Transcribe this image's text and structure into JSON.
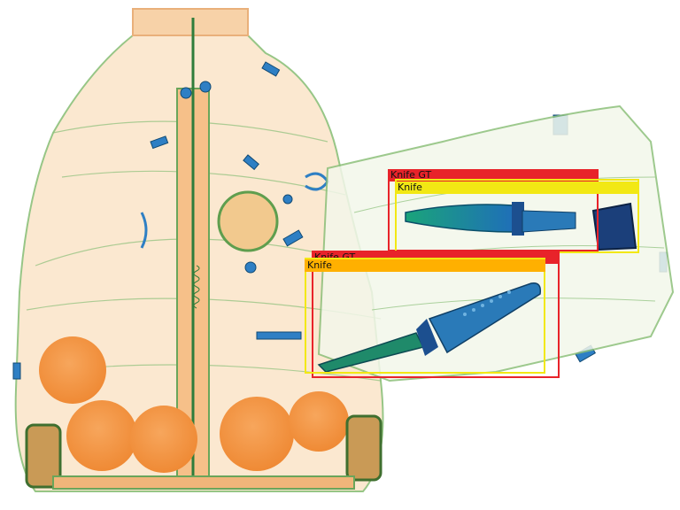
{
  "colors": {
    "gt": "#e8232a",
    "pred": "#f2e814",
    "pred_band": "#ffb000",
    "background": "#ffffff"
  },
  "detections": [
    {
      "label": "Knife GT",
      "kind": "gt"
    },
    {
      "label": "Knife",
      "kind": "pred"
    },
    {
      "label": "Knife GT",
      "kind": "gt"
    },
    {
      "label": "Knife",
      "kind": "pred"
    }
  ]
}
